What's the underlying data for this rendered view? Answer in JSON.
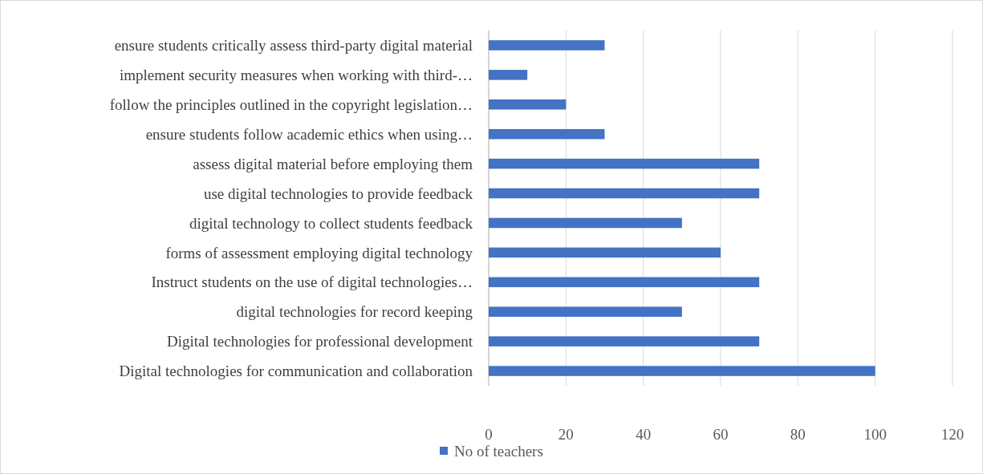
{
  "chart_data": {
    "type": "bar",
    "orientation": "horizontal",
    "categories": [
      "ensure students critically assess third-party digital material",
      "implement security measures when working with third-…",
      "follow the principles outlined in the copyright legislation…",
      "ensure students follow academic ethics when using…",
      "assess digital material before employing them",
      "use digital technologies to provide feedback",
      "digital technology to collect students feedback",
      "forms of assessment employing digital technology",
      "Instruct students on the use of digital technologies…",
      "digital technologies for record keeping",
      "Digital technologies for professional development",
      "Digital technologies for communication and collaboration"
    ],
    "series": [
      {
        "name": "No of teachers",
        "color": "#4472c4",
        "values": [
          30,
          10,
          20,
          30,
          70,
          70,
          50,
          60,
          70,
          50,
          70,
          100
        ]
      }
    ],
    "xlim": [
      0,
      120
    ],
    "xticks": [
      0,
      20,
      40,
      60,
      80,
      100,
      120
    ],
    "grid": "x",
    "legend": "bottom"
  }
}
